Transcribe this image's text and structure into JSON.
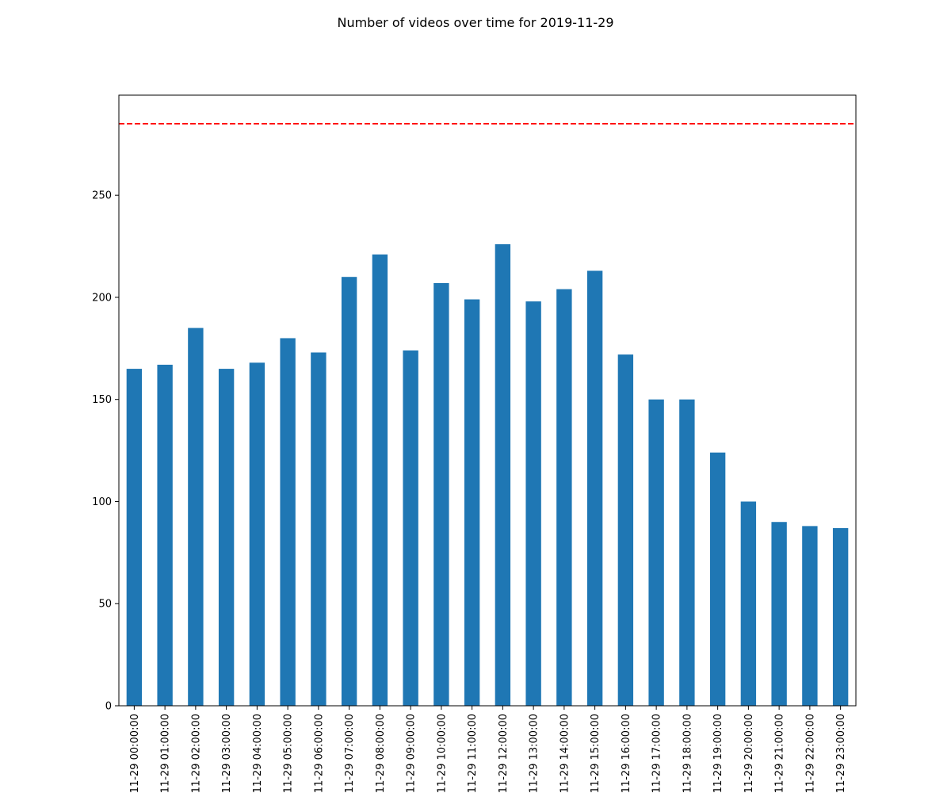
{
  "chart_data": {
    "type": "bar",
    "title": "Number of videos over time for 2019-11-29",
    "xlabel": "",
    "ylabel": "",
    "categories": [
      "2019-11-29 00:00:00",
      "2019-11-29 01:00:00",
      "2019-11-29 02:00:00",
      "2019-11-29 03:00:00",
      "2019-11-29 04:00:00",
      "2019-11-29 05:00:00",
      "2019-11-29 06:00:00",
      "2019-11-29 07:00:00",
      "2019-11-29 08:00:00",
      "2019-11-29 09:00:00",
      "2019-11-29 10:00:00",
      "2019-11-29 11:00:00",
      "2019-11-29 12:00:00",
      "2019-11-29 13:00:00",
      "2019-11-29 14:00:00",
      "2019-11-29 15:00:00",
      "2019-11-29 16:00:00",
      "2019-11-29 17:00:00",
      "2019-11-29 18:00:00",
      "2019-11-29 19:00:00",
      "2019-11-29 20:00:00",
      "2019-11-29 21:00:00",
      "2019-11-29 22:00:00",
      "2019-11-29 23:00:00"
    ],
    "values": [
      165,
      167,
      185,
      165,
      168,
      180,
      173,
      210,
      221,
      174,
      207,
      199,
      226,
      198,
      204,
      213,
      172,
      150,
      150,
      124,
      100,
      90,
      88,
      87
    ],
    "yticks": [
      0,
      50,
      100,
      150,
      200,
      250
    ],
    "ylim": [
      0,
      299
    ],
    "reference_line": {
      "y": 285,
      "style": "dashed",
      "color": "#ff0000"
    },
    "bar_color": "#1f77b4",
    "grid": false,
    "legend": "none"
  }
}
